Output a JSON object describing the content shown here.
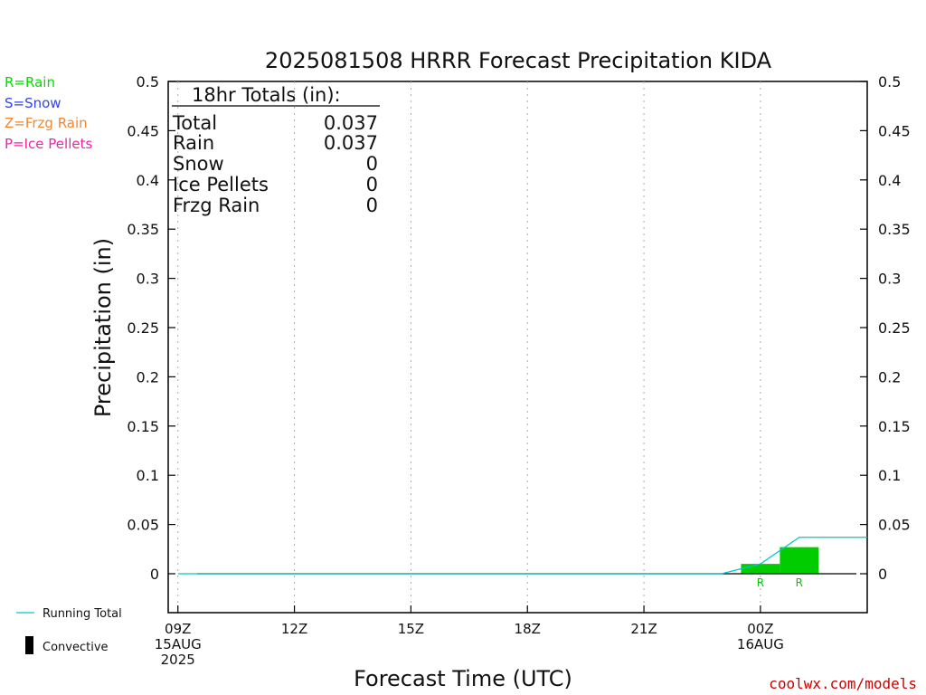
{
  "chart_data": {
    "type": "bar",
    "title": "2025081508 HRRR Forecast Precipitation KIDA",
    "xlabel": "Forecast Time (UTC)",
    "ylabel": "Precipitation (in)",
    "ylim": [
      0,
      0.5
    ],
    "xlim_hours": [
      -0.25,
      17.75
    ],
    "y_ticks": [
      0,
      0.05,
      0.1,
      0.15,
      0.2,
      0.25,
      0.3,
      0.35,
      0.4,
      0.45,
      0.5
    ],
    "y_tick_labels": [
      "0",
      "0.05",
      "0.1",
      "0.15",
      "0.2",
      "0.25",
      "0.3",
      "0.35",
      "0.4",
      "0.45",
      "0.5"
    ],
    "x_ticks": [
      {
        "hour": 0,
        "lines": [
          "09Z",
          "15AUG",
          "2025"
        ]
      },
      {
        "hour": 3,
        "lines": [
          "12Z"
        ]
      },
      {
        "hour": 6,
        "lines": [
          "15Z"
        ]
      },
      {
        "hour": 9,
        "lines": [
          "18Z"
        ]
      },
      {
        "hour": 12,
        "lines": [
          "21Z"
        ]
      },
      {
        "hour": 15,
        "lines": [
          "00Z",
          "16AUG"
        ]
      }
    ],
    "grid": "vertical dotted at x ticks",
    "bars": [
      {
        "start": 14.5,
        "end": 15.5,
        "value": 0.01,
        "type": "R",
        "color": "#00cc00"
      },
      {
        "start": 15.5,
        "end": 16.5,
        "value": 0.027,
        "type": "R",
        "color": "#00cc00"
      }
    ],
    "running_total": {
      "name": "Running Total",
      "color": "#00c8c8",
      "x": [
        0,
        14,
        15,
        16,
        17.75
      ],
      "y": [
        0,
        0,
        0.01,
        0.037,
        0.037
      ]
    },
    "totals_box": {
      "header": "18hr Totals (in):",
      "rows": [
        {
          "label": "Total",
          "value": "0.037"
        },
        {
          "label": "Rain",
          "value": "0.037"
        },
        {
          "label": "Snow",
          "value": "0"
        },
        {
          "label": "Ice Pellets",
          "value": "0"
        },
        {
          "label": "Frzg Rain",
          "value": "0"
        }
      ]
    }
  },
  "type_legend": [
    {
      "text": "R=Rain",
      "color": "#00dd00"
    },
    {
      "text": "S=Snow",
      "color": "#3344ee"
    },
    {
      "text": "Z=Frzg Rain",
      "color": "#ee8833"
    },
    {
      "text": "P=Ice Pellets",
      "color": "#ee22aa"
    }
  ],
  "bottom_legend": {
    "running_total_label": "Running Total",
    "convective_label": "Convective"
  },
  "credit": "coolwx.com/models"
}
